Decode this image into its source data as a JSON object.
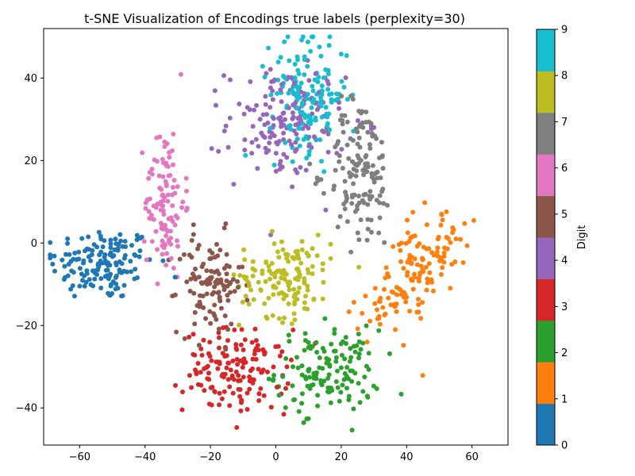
{
  "chart_data": {
    "type": "scatter",
    "title": "t-SNE Visualization of Encodings true labels (perplexity=30)",
    "xlabel": "",
    "ylabel": "",
    "xlim": [
      -71,
      71
    ],
    "ylim": [
      -49,
      52
    ],
    "xticks": [
      "−60",
      "−40",
      "−20",
      "0",
      "20",
      "40",
      "60"
    ],
    "xtick_values": [
      -60,
      -40,
      -20,
      0,
      20,
      40,
      60
    ],
    "yticks": [
      "−40",
      "−20",
      "0",
      "20",
      "40"
    ],
    "ytick_values": [
      -40,
      -20,
      0,
      20,
      40
    ],
    "grid": false,
    "colormap": "tab10",
    "colorbar": {
      "label": "Digit",
      "range": [
        0,
        9
      ],
      "ticks": [
        "0",
        "1",
        "2",
        "3",
        "4",
        "5",
        "6",
        "7",
        "8",
        "9"
      ],
      "colors": [
        "#1f77b4",
        "#ff7f0e",
        "#2ca02c",
        "#d62728",
        "#9467bd",
        "#8c564b",
        "#e377c2",
        "#7f7f7f",
        "#bcbd22",
        "#17becf"
      ]
    },
    "clusters": [
      {
        "digit": 0,
        "color": "#1f77b4",
        "center": [
          -53,
          -5
        ],
        "spread": [
          8,
          4.5
        ],
        "count": 150
      },
      {
        "digit": 1,
        "color": "#ff7f0e",
        "center": [
          43,
          -7
        ],
        "spread": [
          9,
          5
        ],
        "count": 150,
        "orientation_deg": 38
      },
      {
        "digit": 2,
        "color": "#2ca02c",
        "center": [
          16,
          -31
        ],
        "spread": [
          8,
          5
        ],
        "count": 140
      },
      {
        "digit": 3,
        "color": "#d62728",
        "center": [
          -12,
          -31
        ],
        "spread": [
          8,
          5
        ],
        "count": 150
      },
      {
        "digit": 4,
        "color": "#9467bd",
        "center": [
          3,
          29
        ],
        "spread": [
          9,
          7
        ],
        "count": 160
      },
      {
        "digit": 5,
        "color": "#8c564b",
        "center": [
          -20,
          -10
        ],
        "spread": [
          5,
          6
        ],
        "count": 110
      },
      {
        "digit": 6,
        "color": "#e377c2",
        "center": [
          -34,
          10
        ],
        "spread": [
          3,
          9
        ],
        "count": 110
      },
      {
        "digit": 7,
        "color": "#7f7f7f",
        "center": [
          26,
          17
        ],
        "spread": [
          5,
          9
        ],
        "count": 140
      },
      {
        "digit": 8,
        "color": "#bcbd22",
        "center": [
          3,
          -8
        ],
        "spread": [
          7,
          5
        ],
        "count": 140
      },
      {
        "digit": 9,
        "color": "#17becf",
        "center": [
          10,
          36
        ],
        "spread": [
          6,
          7
        ],
        "count": 150
      }
    ]
  }
}
